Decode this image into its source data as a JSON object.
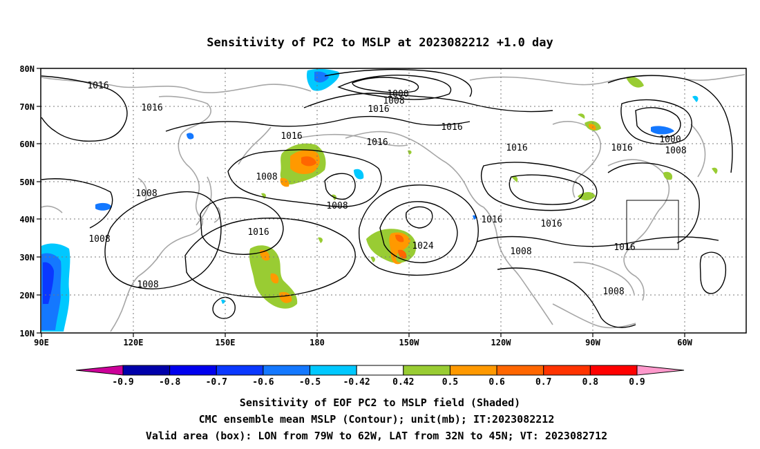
{
  "title": "Sensitivity of PC2 to MSLP at 2023082212 +1.0 day",
  "map": {
    "lat_ticks": [
      "80N",
      "70N",
      "60N",
      "50N",
      "40N",
      "30N",
      "20N",
      "10N"
    ],
    "lon_ticks": [
      "90E",
      "120E",
      "150E",
      "180",
      "150W",
      "120W",
      "90W",
      "60W"
    ],
    "isobar_labels": [
      {
        "id": "iso-1016-a",
        "text": "1016"
      },
      {
        "id": "iso-1016-b",
        "text": "1016"
      },
      {
        "id": "iso-1000-a",
        "text": "1000"
      },
      {
        "id": "iso-1008-a",
        "text": "1008"
      },
      {
        "id": "iso-1016-c",
        "text": "1016"
      },
      {
        "id": "iso-1016-d",
        "text": "1016"
      },
      {
        "id": "iso-1016-e",
        "text": "1016"
      },
      {
        "id": "iso-1016-f",
        "text": "1016"
      },
      {
        "id": "iso-1016-g",
        "text": "1016"
      },
      {
        "id": "iso-1000-b",
        "text": "1000"
      },
      {
        "id": "iso-1008-b",
        "text": "1008"
      },
      {
        "id": "iso-1008-c",
        "text": "1008"
      },
      {
        "id": "iso-1008-d",
        "text": "1008"
      },
      {
        "id": "iso-1008-e",
        "text": "1008"
      },
      {
        "id": "iso-1016-h",
        "text": "1016"
      },
      {
        "id": "iso-1008-f",
        "text": "1008"
      },
      {
        "id": "iso-1016-i",
        "text": "1016"
      },
      {
        "id": "iso-1024",
        "text": "1024"
      },
      {
        "id": "iso-1016-j",
        "text": "1016"
      },
      {
        "id": "iso-1016-k",
        "text": "1016"
      },
      {
        "id": "iso-1016-l",
        "text": "1016"
      },
      {
        "id": "iso-1008-g",
        "text": "1008"
      },
      {
        "id": "iso-1008-h",
        "text": "1008"
      },
      {
        "id": "iso-1008-i",
        "text": "1008"
      }
    ]
  },
  "colorbar": {
    "labels": [
      "-0.9",
      "-0.8",
      "-0.7",
      "-0.6",
      "-0.5",
      "-0.42",
      "0.42",
      "0.5",
      "0.6",
      "0.7",
      "0.8",
      "0.9"
    ],
    "colors": [
      "#cc0099",
      "#0000aa",
      "#0000ee",
      "#0a38ff",
      "#1478ff",
      "#00c8ff",
      "#ffffff",
      "#99cc33",
      "#ff9900",
      "#ff6600",
      "#ff3300",
      "#ff0000",
      "#ff99cc"
    ]
  },
  "caption": {
    "line1": "Sensitivity of EOF PC2 to MSLP field (Shaded)",
    "line2": "CMC ensemble mean MSLP (Contour); unit(mb); IT:2023082212",
    "line3": "Valid area (box): LON from 79W to 62W, LAT from 32N to 45N; VT: 2023082712"
  }
}
